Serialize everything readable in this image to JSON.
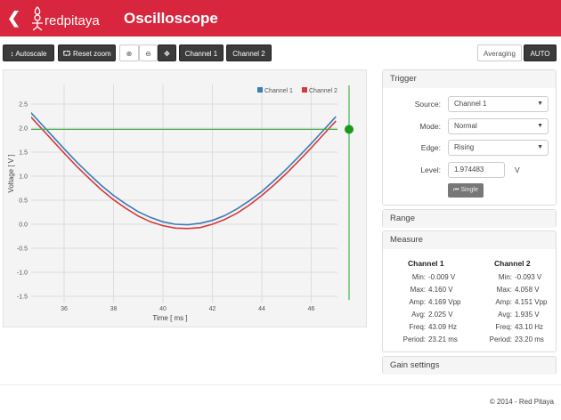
{
  "header": {
    "title": "Oscilloscope",
    "logo_text": "redpitaya",
    "back_icon": "chevron-left-icon"
  },
  "toolbar": {
    "autoscale": "Autoscale",
    "reset_zoom": "Reset zoom",
    "channel1": "Channel 1",
    "channel2": "Channel 2",
    "averaging": "Averaging",
    "auto": "AUTO"
  },
  "chart_data": {
    "type": "line",
    "xlabel": "Time [ ms ]",
    "ylabel": "Voltage [ V ]",
    "xlim": [
      34.67,
      47.07
    ],
    "ylim": [
      -1.5,
      2.7
    ],
    "xticks": [
      "36",
      "38",
      "40",
      "42",
      "44",
      "46"
    ],
    "yticks": [
      "2.5",
      "2.0",
      "1.5",
      "1.0",
      "0.5",
      "0.0",
      "-0.5",
      "-1.0",
      "-1.5"
    ],
    "grid": true,
    "legend": "top-right",
    "trigger_level": 1.974483,
    "x": [
      34.5,
      35,
      35.5,
      36,
      36.5,
      37,
      37.5,
      38,
      38.5,
      39,
      39.5,
      40,
      40.5,
      41,
      41.5,
      42,
      42.5,
      43,
      43.5,
      44,
      44.5,
      45,
      45.5,
      46,
      46.5,
      47
    ],
    "series": [
      {
        "name": "Channel 1",
        "color": "#3a7ab8",
        "values": [
          2.41,
          2.13,
          1.85,
          1.57,
          1.3,
          1.05,
          0.81,
          0.6,
          0.42,
          0.26,
          0.14,
          0.05,
          0.0,
          -0.01,
          0.02,
          0.08,
          0.18,
          0.32,
          0.49,
          0.68,
          0.91,
          1.15,
          1.41,
          1.68,
          1.96,
          2.24
        ]
      },
      {
        "name": "Channel 2",
        "color": "#d33a3a",
        "values": [
          2.32,
          2.04,
          1.76,
          1.48,
          1.21,
          0.96,
          0.72,
          0.51,
          0.33,
          0.17,
          0.05,
          -0.03,
          -0.08,
          -0.09,
          -0.07,
          0.0,
          0.1,
          0.23,
          0.4,
          0.6,
          0.82,
          1.06,
          1.32,
          1.59,
          1.87,
          2.15
        ]
      }
    ]
  },
  "trigger": {
    "title": "Trigger",
    "source_label": "Source:",
    "source": "Channel 1",
    "mode_label": "Mode:",
    "mode": "Normal",
    "edge_label": "Edge:",
    "edge": "Rising",
    "level_label": "Level:",
    "level": "1.974483",
    "unit": "V",
    "single": "Single"
  },
  "range": {
    "title": "Range"
  },
  "measure": {
    "title": "Measure",
    "channels": [
      {
        "name": "Channel 1",
        "rows": [
          [
            "Min:",
            "-0.009 V"
          ],
          [
            "Max:",
            "4.160 V"
          ],
          [
            "Amp:",
            "4.169 Vpp"
          ],
          [
            "Avg:",
            "2.025 V"
          ],
          [
            "Freq:",
            "43.09 Hz"
          ],
          [
            "Period:",
            "23.21 ms"
          ]
        ]
      },
      {
        "name": "Channel 2",
        "rows": [
          [
            "Min:",
            "-0.093 V"
          ],
          [
            "Max:",
            "4.058 V"
          ],
          [
            "Amp:",
            "4.151 Vpp"
          ],
          [
            "Avg:",
            "1.935 V"
          ],
          [
            "Freq:",
            "43.10 Hz"
          ],
          [
            "Period:",
            "23.20 ms"
          ]
        ]
      }
    ]
  },
  "gain": {
    "title": "Gain settings"
  },
  "footer": {
    "copyright": "© 2014 - Red Pitaya"
  }
}
